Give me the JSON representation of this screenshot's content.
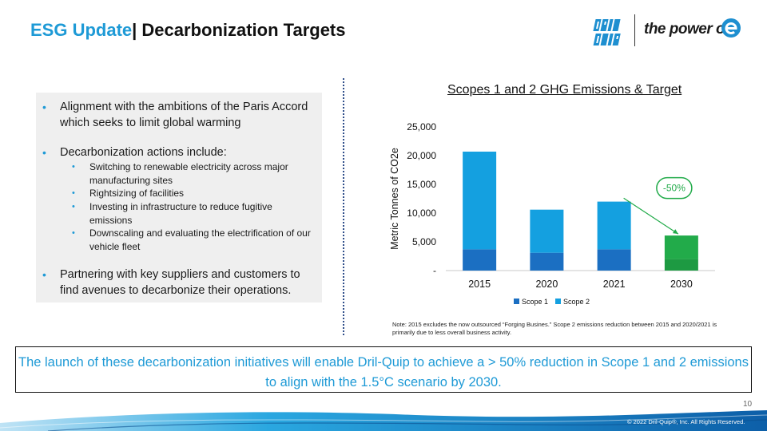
{
  "header": {
    "title_accent": "ESG Update",
    "title_main": "| Decarbonization Targets"
  },
  "logo": {
    "brand_text": "DRIL-QUIP",
    "tagline": "the power of",
    "icon": "e-icon"
  },
  "bullets": {
    "items": [
      "Alignment with the ambitions of the Paris Accord which seeks to limit global warming",
      "Decarbonization actions include:",
      "Partnering with key suppliers and customers to find avenues to decarbonize their operations."
    ],
    "sub_items": [
      "Switching to renewable electricity across major manufacturing sites",
      "Rightsizing of facilities",
      "Investing in infrastructure to reduce fugitive emissions",
      "Downscaling and evaluating the electrification of our vehicle fleet"
    ]
  },
  "chart_data": {
    "type": "bar",
    "stacked": true,
    "title": "Scopes 1 and 2 GHG Emissions & Target",
    "ylabel": "Metric Tonnes of CO2e",
    "xlabel": "",
    "categories": [
      "2015",
      "2020",
      "2021",
      "2030"
    ],
    "series": [
      {
        "name": "Scope 1",
        "values": [
          3700,
          3100,
          3700,
          2000
        ],
        "color": "#1b6fc2"
      },
      {
        "name": "Scope 2",
        "values": [
          17000,
          7500,
          8300,
          4100
        ],
        "color": "#14a0e0"
      }
    ],
    "target_color": "#22ab4a",
    "target_color_dark": "#1d9a42",
    "ylim": [
      0,
      25000
    ],
    "yticks": [
      "-",
      "5,000",
      "10,000",
      "15,000",
      "20,000",
      "25,000"
    ],
    "annotation": "-50%",
    "legend_position": "bottom"
  },
  "note": "Note: 2015 excludes the now outsourced “Forging Busines.” Scope 2 emissions reduction between 2015 and 2020/2021 is primarily due to less overall business activity.",
  "callout": "The launch of these decarbonization initiatives will enable Dril-Quip to achieve a > 50% reduction in Scope 1 and 2 emissions to align with the 1.5°C scenario by 2030.",
  "page_number": "10",
  "copyright": "© 2022 Dril-Quip®, Inc. All Rights Reserved.",
  "colors": {
    "accent": "#1e9ad6",
    "scope1": "#1b6fc2",
    "scope2": "#14a0e0",
    "target": "#22ab4a"
  }
}
